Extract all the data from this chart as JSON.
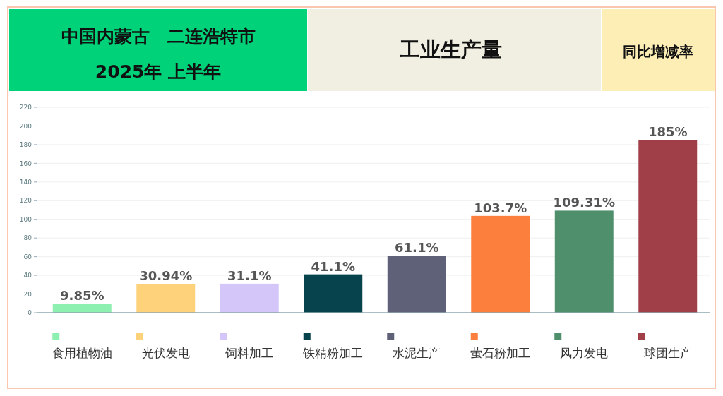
{
  "chart_data": {
    "type": "bar",
    "title": "工业生产量",
    "annotations": [
      "中国内蒙古　二连浩特市",
      "2025年 上半年",
      "同比增减率"
    ],
    "categories": [
      "食用植物油",
      "光伏发电",
      "饲料加工",
      "铁精粉加工",
      "水泥生产",
      "萤石粉加工",
      "风力发电",
      "球团生产"
    ],
    "values": [
      9.85,
      30.94,
      31.1,
      41.1,
      61.1,
      103.7,
      109.31,
      185
    ],
    "value_labels": [
      "9.85%",
      "30.94%",
      "31.1%",
      "41.1%",
      "61.1%",
      "103.7%",
      "109.31%",
      "185%"
    ],
    "colors": [
      "#8ef0b0",
      "#fdd27a",
      "#d5c6fa",
      "#06434c",
      "#5e6178",
      "#fd7f3d",
      "#4f8f6c",
      "#a13f48"
    ],
    "ylim": [
      0,
      220
    ],
    "yticks": [
      0,
      20,
      40,
      60,
      80,
      100,
      120,
      140,
      160,
      180,
      200,
      220
    ],
    "grid": "y"
  }
}
